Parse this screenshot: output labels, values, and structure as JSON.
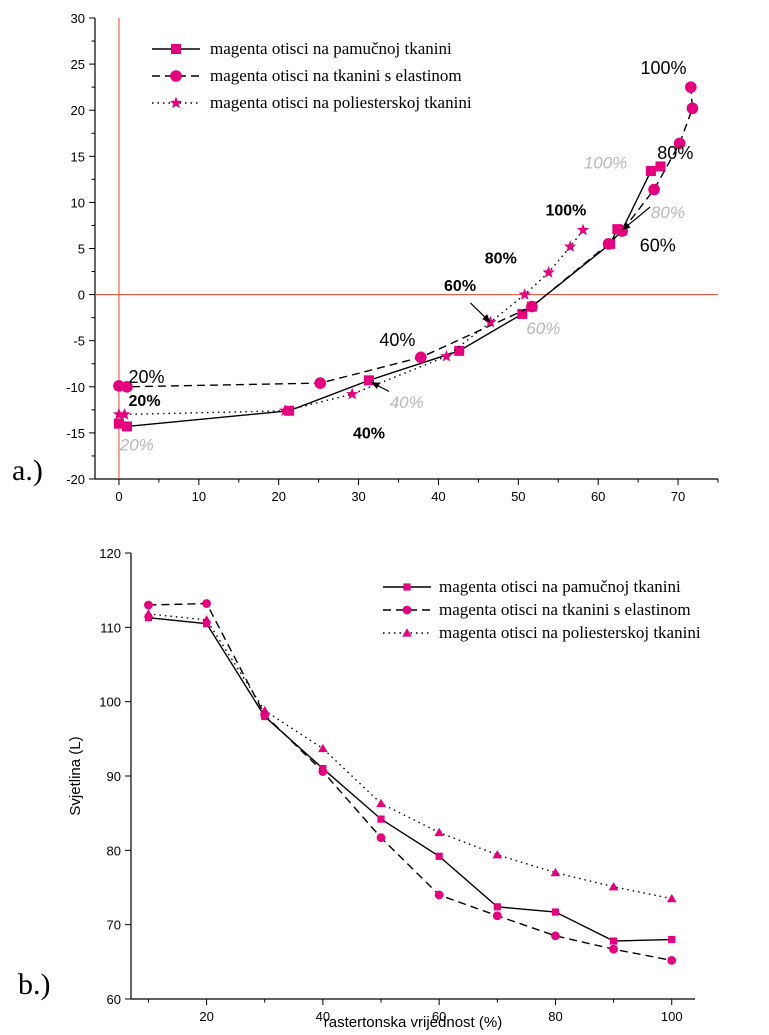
{
  "colors": {
    "marker": "#e6007e",
    "line": "#000000",
    "axis_zero": "#e8462a",
    "annotation_gray": "#b8b8b8"
  },
  "chart_data": [
    {
      "panel_label": "a.)",
      "type": "line",
      "xlabel": "",
      "ylabel": "",
      "xlim": [
        -3,
        75
      ],
      "ylim": [
        -20,
        30
      ],
      "x_ticks": [
        0,
        10,
        20,
        30,
        40,
        50,
        60,
        70
      ],
      "y_ticks": [
        -20,
        -15,
        -10,
        -5,
        0,
        5,
        10,
        15,
        20,
        25,
        30
      ],
      "zero_lines": true,
      "legend_position": "top-left",
      "series": [
        {
          "name": "magenta otisci na pamučnoj tkanini",
          "marker": "square",
          "dash": "solid",
          "points": [
            [
              0,
              -14
            ],
            [
              1,
              -14.3
            ],
            [
              21.3,
              -12.6
            ],
            [
              31.3,
              -9.3
            ],
            [
              42.6,
              -6.1
            ],
            [
              50.5,
              -2.1
            ],
            [
              51.7,
              -1.3
            ],
            [
              61.5,
              5.5
            ],
            [
              62.4,
              7.1
            ],
            [
              63,
              7
            ],
            [
              66.6,
              13.4
            ],
            [
              67.8,
              13.9
            ]
          ]
        },
        {
          "name": "magenta otisci na tkanini s elastinom",
          "marker": "circle",
          "dash": "dashed",
          "points": [
            [
              0,
              -9.9
            ],
            [
              1,
              -10
            ],
            [
              25.2,
              -9.6
            ],
            [
              37.8,
              -6.8
            ],
            [
              51.7,
              -1.3
            ],
            [
              61.3,
              5.5
            ],
            [
              63,
              6.9
            ],
            [
              67,
              11.4
            ],
            [
              70.2,
              16.4
            ],
            [
              71.8,
              20.2
            ],
            [
              71.6,
              22.5
            ]
          ]
        },
        {
          "name": "magenta otisci na poliesterskoj tkanini",
          "marker": "star",
          "dash": "dotted",
          "points": [
            [
              0,
              -13
            ],
            [
              0.7,
              -13
            ],
            [
              20.8,
              -12.6
            ],
            [
              29.2,
              -10.8
            ],
            [
              41,
              -6.7
            ],
            [
              46.5,
              -3
            ],
            [
              50.8,
              0
            ],
            [
              53.8,
              2.4
            ],
            [
              56.5,
              5.2
            ],
            [
              58.1,
              7
            ]
          ]
        }
      ],
      "annotations": [
        {
          "text": "20%",
          "style": "black",
          "x": 1.2,
          "y": -9.6
        },
        {
          "text": "40%",
          "style": "black",
          "x": 32.6,
          "y": -5.6
        },
        {
          "text": "60%",
          "style": "black",
          "x": 65.2,
          "y": 4.7
        },
        {
          "text": "80%",
          "style": "black",
          "x": 67.4,
          "y": 14.7
        },
        {
          "text": "100%",
          "style": "black",
          "x": 65.3,
          "y": 23.9
        },
        {
          "text": "20%",
          "style": "bold",
          "x": 1.2,
          "y": -12.1
        },
        {
          "text": "40%",
          "style": "bold",
          "x": 29.3,
          "y": -15.6
        },
        {
          "text": "60%",
          "style": "bold",
          "x": 40.7,
          "y": 0.4
        },
        {
          "text": "80%",
          "style": "bold",
          "x": 45.8,
          "y": 3.4
        },
        {
          "text": "100%",
          "style": "bold",
          "x": 53.4,
          "y": 8.6
        },
        {
          "text": "20%",
          "style": "gray",
          "x": 0.1,
          "y": -16.9
        },
        {
          "text": "40%",
          "style": "gray",
          "x": 33.9,
          "y": -12.3
        },
        {
          "text": "60%",
          "style": "gray",
          "x": 51,
          "y": -4.3
        },
        {
          "text": "80%",
          "style": "gray",
          "x": 66.6,
          "y": 8.3
        },
        {
          "text": "100%",
          "style": "gray",
          "x": 58.2,
          "y": 13.7
        }
      ],
      "arrows": [
        {
          "from": [
            33.8,
            -10.5
          ],
          "to": [
            31.6,
            -9.5
          ]
        },
        {
          "from": [
            44,
            -0.9
          ],
          "to": [
            46.5,
            -3
          ]
        },
        {
          "from": [
            66.5,
            9.5
          ],
          "to": [
            63,
            7
          ]
        }
      ]
    },
    {
      "panel_label": "b.)",
      "type": "line",
      "xlabel": "rastertonska vrijednost (%)",
      "ylabel": "Svjetlina (L)",
      "xlim": [
        7,
        104
      ],
      "ylim": [
        60,
        120
      ],
      "x_ticks": [
        20,
        40,
        60,
        80,
        100
      ],
      "y_ticks": [
        60,
        70,
        80,
        90,
        100,
        110,
        120
      ],
      "legend_position": "top-right",
      "x": [
        10,
        20,
        30,
        40,
        50,
        60,
        70,
        80,
        90,
        100
      ],
      "series": [
        {
          "name": "magenta otisci na pamučnoj tkanini",
          "marker": "square",
          "dash": "solid",
          "values": [
            111.3,
            110.5,
            98,
            91,
            84.2,
            79.2,
            72.4,
            71.7,
            67.8,
            68
          ]
        },
        {
          "name": "magenta otisci na tkanini s elastinom",
          "marker": "circle",
          "dash": "dashed",
          "values": [
            113,
            113.2,
            98.2,
            90.6,
            81.7,
            74,
            71.2,
            68.5,
            66.7,
            65.2
          ]
        },
        {
          "name": "magenta otisci na poliesterskoj tkanini",
          "marker": "triangle",
          "dash": "dotted",
          "values": [
            111.8,
            111,
            98.8,
            93.7,
            86.3,
            82.4,
            79.4,
            77,
            75.1,
            73.5
          ]
        }
      ]
    }
  ]
}
